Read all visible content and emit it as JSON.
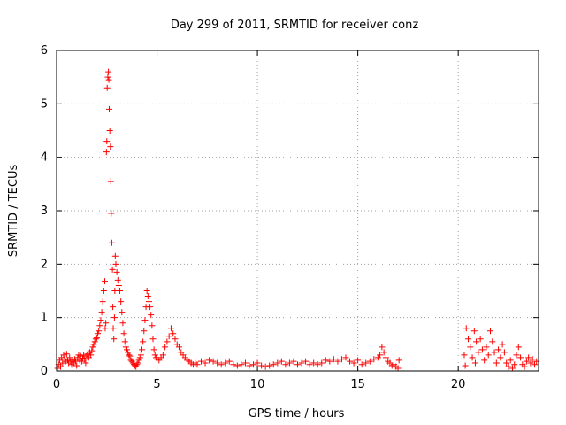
{
  "chart_data": {
    "type": "scatter",
    "title": "Day 299 of 2011, SRMTID for receiver conz",
    "xlabel": "GPS time / hours",
    "ylabel": "SRMTID / TECUs",
    "xlim": [
      0,
      24
    ],
    "ylim": [
      0,
      6
    ],
    "xticks": [
      0,
      5,
      10,
      15,
      20
    ],
    "yticks": [
      0,
      1,
      2,
      3,
      4,
      5,
      6
    ],
    "grid": true,
    "marker": "plus",
    "color": "#ff0000",
    "series": [
      {
        "name": "SRMTID",
        "points": [
          [
            0.05,
            0.05
          ],
          [
            0.1,
            0.12
          ],
          [
            0.15,
            0.2
          ],
          [
            0.2,
            0.08
          ],
          [
            0.25,
            0.25
          ],
          [
            0.3,
            0.15
          ],
          [
            0.35,
            0.3
          ],
          [
            0.4,
            0.22
          ],
          [
            0.45,
            0.18
          ],
          [
            0.5,
            0.32
          ],
          [
            0.55,
            0.2
          ],
          [
            0.6,
            0.15
          ],
          [
            0.65,
            0.25
          ],
          [
            0.7,
            0.18
          ],
          [
            0.75,
            0.12
          ],
          [
            0.8,
            0.2
          ],
          [
            0.85,
            0.15
          ],
          [
            0.9,
            0.22
          ],
          [
            0.95,
            0.18
          ],
          [
            1.0,
            0.1
          ],
          [
            1.05,
            0.25
          ],
          [
            1.1,
            0.3
          ],
          [
            1.15,
            0.2
          ],
          [
            1.2,
            0.28
          ],
          [
            1.25,
            0.18
          ],
          [
            1.3,
            0.24
          ],
          [
            1.35,
            0.3
          ],
          [
            1.4,
            0.22
          ],
          [
            1.45,
            0.15
          ],
          [
            1.5,
            0.28
          ],
          [
            1.55,
            0.32
          ],
          [
            1.6,
            0.25
          ],
          [
            1.65,
            0.35
          ],
          [
            1.7,
            0.3
          ],
          [
            1.75,
            0.38
          ],
          [
            1.8,
            0.45
          ],
          [
            1.85,
            0.5
          ],
          [
            1.9,
            0.55
          ],
          [
            1.95,
            0.6
          ],
          [
            2.0,
            0.62
          ],
          [
            2.05,
            0.7
          ],
          [
            2.1,
            0.75
          ],
          [
            2.15,
            0.85
          ],
          [
            2.2,
            0.95
          ],
          [
            2.25,
            1.1
          ],
          [
            2.3,
            1.3
          ],
          [
            2.35,
            1.5
          ],
          [
            2.4,
            1.68
          ],
          [
            2.42,
            0.8
          ],
          [
            2.45,
            0.9
          ],
          [
            2.48,
            4.1
          ],
          [
            2.5,
            4.3
          ],
          [
            2.52,
            5.3
          ],
          [
            2.55,
            5.5
          ],
          [
            2.58,
            5.6
          ],
          [
            2.6,
            5.45
          ],
          [
            2.62,
            4.9
          ],
          [
            2.65,
            4.5
          ],
          [
            2.68,
            4.2
          ],
          [
            2.7,
            3.55
          ],
          [
            2.72,
            2.95
          ],
          [
            2.75,
            2.4
          ],
          [
            2.78,
            1.9
          ],
          [
            2.8,
            1.2
          ],
          [
            2.82,
            0.8
          ],
          [
            2.85,
            0.6
          ],
          [
            2.88,
            1.0
          ],
          [
            2.9,
            1.5
          ],
          [
            2.92,
            2.15
          ],
          [
            2.95,
            2.0
          ],
          [
            3.0,
            1.85
          ],
          [
            3.05,
            1.7
          ],
          [
            3.1,
            1.6
          ],
          [
            3.15,
            1.5
          ],
          [
            3.2,
            1.3
          ],
          [
            3.25,
            1.1
          ],
          [
            3.3,
            0.9
          ],
          [
            3.35,
            0.7
          ],
          [
            3.4,
            0.55
          ],
          [
            3.45,
            0.45
          ],
          [
            3.5,
            0.4
          ],
          [
            3.55,
            0.35
          ],
          [
            3.6,
            0.3
          ],
          [
            3.65,
            0.28
          ],
          [
            3.7,
            0.2
          ],
          [
            3.75,
            0.18
          ],
          [
            3.8,
            0.15
          ],
          [
            3.85,
            0.12
          ],
          [
            3.9,
            0.1
          ],
          [
            3.95,
            0.08
          ],
          [
            4.0,
            0.12
          ],
          [
            4.05,
            0.15
          ],
          [
            4.1,
            0.2
          ],
          [
            4.15,
            0.25
          ],
          [
            4.2,
            0.3
          ],
          [
            4.25,
            0.4
          ],
          [
            4.3,
            0.55
          ],
          [
            4.35,
            0.75
          ],
          [
            4.4,
            0.95
          ],
          [
            4.45,
            1.2
          ],
          [
            4.5,
            1.5
          ],
          [
            4.55,
            1.4
          ],
          [
            4.6,
            1.3
          ],
          [
            4.65,
            1.2
          ],
          [
            4.7,
            1.05
          ],
          [
            4.75,
            0.85
          ],
          [
            4.8,
            0.6
          ],
          [
            4.85,
            0.4
          ],
          [
            4.9,
            0.3
          ],
          [
            4.95,
            0.25
          ],
          [
            5.0,
            0.22
          ],
          [
            5.1,
            0.2
          ],
          [
            5.2,
            0.25
          ],
          [
            5.3,
            0.3
          ],
          [
            5.4,
            0.45
          ],
          [
            5.5,
            0.55
          ],
          [
            5.6,
            0.65
          ],
          [
            5.7,
            0.8
          ],
          [
            5.8,
            0.7
          ],
          [
            5.9,
            0.6
          ],
          [
            6.0,
            0.5
          ],
          [
            6.1,
            0.45
          ],
          [
            6.2,
            0.35
          ],
          [
            6.3,
            0.3
          ],
          [
            6.4,
            0.25
          ],
          [
            6.5,
            0.2
          ],
          [
            6.6,
            0.18
          ],
          [
            6.7,
            0.15
          ],
          [
            6.8,
            0.12
          ],
          [
            6.9,
            0.15
          ],
          [
            7.0,
            0.12
          ],
          [
            7.2,
            0.18
          ],
          [
            7.4,
            0.15
          ],
          [
            7.6,
            0.2
          ],
          [
            7.8,
            0.18
          ],
          [
            8.0,
            0.15
          ],
          [
            8.2,
            0.12
          ],
          [
            8.4,
            0.15
          ],
          [
            8.6,
            0.18
          ],
          [
            8.8,
            0.12
          ],
          [
            9.0,
            0.1
          ],
          [
            9.2,
            0.12
          ],
          [
            9.4,
            0.15
          ],
          [
            9.6,
            0.1
          ],
          [
            9.8,
            0.12
          ],
          [
            10.0,
            0.15
          ],
          [
            10.2,
            0.1
          ],
          [
            10.4,
            0.08
          ],
          [
            10.6,
            0.1
          ],
          [
            10.8,
            0.12
          ],
          [
            11.0,
            0.15
          ],
          [
            11.2,
            0.18
          ],
          [
            11.4,
            0.12
          ],
          [
            11.6,
            0.15
          ],
          [
            11.8,
            0.18
          ],
          [
            12.0,
            0.12
          ],
          [
            12.2,
            0.15
          ],
          [
            12.4,
            0.18
          ],
          [
            12.6,
            0.12
          ],
          [
            12.8,
            0.15
          ],
          [
            13.0,
            0.12
          ],
          [
            13.2,
            0.15
          ],
          [
            13.4,
            0.2
          ],
          [
            13.6,
            0.18
          ],
          [
            13.8,
            0.22
          ],
          [
            14.0,
            0.18
          ],
          [
            14.2,
            0.22
          ],
          [
            14.4,
            0.25
          ],
          [
            14.6,
            0.18
          ],
          [
            14.8,
            0.15
          ],
          [
            15.0,
            0.2
          ],
          [
            15.2,
            0.12
          ],
          [
            15.4,
            0.15
          ],
          [
            15.6,
            0.18
          ],
          [
            15.8,
            0.22
          ],
          [
            16.0,
            0.25
          ],
          [
            16.1,
            0.3
          ],
          [
            16.2,
            0.45
          ],
          [
            16.3,
            0.35
          ],
          [
            16.4,
            0.25
          ],
          [
            16.5,
            0.18
          ],
          [
            16.6,
            0.15
          ],
          [
            16.7,
            0.1
          ],
          [
            16.8,
            0.12
          ],
          [
            16.9,
            0.08
          ],
          [
            17.0,
            0.05
          ],
          [
            17.05,
            0.2
          ],
          [
            20.3,
            0.3
          ],
          [
            20.35,
            0.1
          ],
          [
            20.4,
            0.8
          ],
          [
            20.5,
            0.6
          ],
          [
            20.6,
            0.45
          ],
          [
            20.7,
            0.25
          ],
          [
            20.8,
            0.75
          ],
          [
            20.85,
            0.15
          ],
          [
            20.9,
            0.55
          ],
          [
            21.0,
            0.35
          ],
          [
            21.1,
            0.6
          ],
          [
            21.2,
            0.4
          ],
          [
            21.3,
            0.2
          ],
          [
            21.4,
            0.45
          ],
          [
            21.5,
            0.3
          ],
          [
            21.6,
            0.75
          ],
          [
            21.7,
            0.55
          ],
          [
            21.8,
            0.35
          ],
          [
            21.9,
            0.15
          ],
          [
            22.0,
            0.4
          ],
          [
            22.1,
            0.25
          ],
          [
            22.2,
            0.5
          ],
          [
            22.3,
            0.35
          ],
          [
            22.4,
            0.15
          ],
          [
            22.5,
            0.08
          ],
          [
            22.6,
            0.2
          ],
          [
            22.7,
            0.05
          ],
          [
            22.8,
            0.12
          ],
          [
            22.9,
            0.3
          ],
          [
            23.0,
            0.45
          ],
          [
            23.1,
            0.25
          ],
          [
            23.2,
            0.12
          ],
          [
            23.3,
            0.08
          ],
          [
            23.4,
            0.18
          ],
          [
            23.5,
            0.25
          ],
          [
            23.6,
            0.15
          ],
          [
            23.7,
            0.22
          ],
          [
            23.8,
            0.12
          ],
          [
            23.9,
            0.18
          ]
        ]
      }
    ]
  }
}
